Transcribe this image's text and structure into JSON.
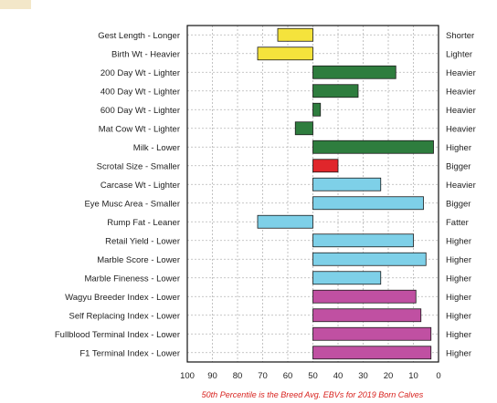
{
  "chart_data": {
    "type": "bar",
    "orientation": "horizontal",
    "xlim": [
      100,
      0
    ],
    "x_ticks": [
      "100",
      "90",
      "80",
      "70",
      "60",
      "50",
      "40",
      "30",
      "20",
      "10",
      "0"
    ],
    "grid": true,
    "reference_value": 50,
    "footnote": "50th Percentile is the Breed Avg. EBVs for 2019 Born Calves",
    "bars": [
      {
        "left_label": "Gest Length - Longer",
        "right_label": "Shorter",
        "value": 64,
        "color": "#f5e33c"
      },
      {
        "left_label": "Birth Wt - Heavier",
        "right_label": "Lighter",
        "value": 72,
        "color": "#f5e33c"
      },
      {
        "left_label": "200 Day Wt - Lighter",
        "right_label": "Heavier",
        "value": 17,
        "color": "#2e7d3e"
      },
      {
        "left_label": "400 Day Wt - Lighter",
        "right_label": "Heavier",
        "value": 32,
        "color": "#2e7d3e"
      },
      {
        "left_label": "600 Day Wt - Lighter",
        "right_label": "Heavier",
        "value": 47,
        "color": "#2e7d3e"
      },
      {
        "left_label": "Mat Cow Wt - Lighter",
        "right_label": "Heavier",
        "value": 57,
        "color": "#2e7d3e"
      },
      {
        "left_label": "Milk - Lower",
        "right_label": "Higher",
        "value": 2,
        "color": "#2e7d3e"
      },
      {
        "left_label": "Scrotal Size - Smaller",
        "right_label": "Bigger",
        "value": 40,
        "color": "#e0262b"
      },
      {
        "left_label": "Carcase Wt - Lighter",
        "right_label": "Heavier",
        "value": 23,
        "color": "#7ed0e8"
      },
      {
        "left_label": "Eye Musc Area - Smaller",
        "right_label": "Bigger",
        "value": 6,
        "color": "#7ed0e8"
      },
      {
        "left_label": "Rump Fat - Leaner",
        "right_label": "Fatter",
        "value": 72,
        "color": "#7ed0e8"
      },
      {
        "left_label": "Retail Yield - Lower",
        "right_label": "Higher",
        "value": 10,
        "color": "#7ed0e8"
      },
      {
        "left_label": "Marble Score - Lower",
        "right_label": "Higher",
        "value": 5,
        "color": "#7ed0e8"
      },
      {
        "left_label": "Marble Fineness - Lower",
        "right_label": "Higher",
        "value": 23,
        "color": "#7ed0e8"
      },
      {
        "left_label": "Wagyu Breeder Index - Lower",
        "right_label": "Higher",
        "value": 9,
        "color": "#c050a2"
      },
      {
        "left_label": "Self Replacing Index - Lower",
        "right_label": "Higher",
        "value": 7,
        "color": "#c050a2"
      },
      {
        "left_label": "Fullblood Terminal Index - Lower",
        "right_label": "Higher",
        "value": 3,
        "color": "#c050a2"
      },
      {
        "left_label": "F1 Terminal Index - Lower",
        "right_label": "Higher",
        "value": 3,
        "color": "#c050a2"
      }
    ]
  }
}
